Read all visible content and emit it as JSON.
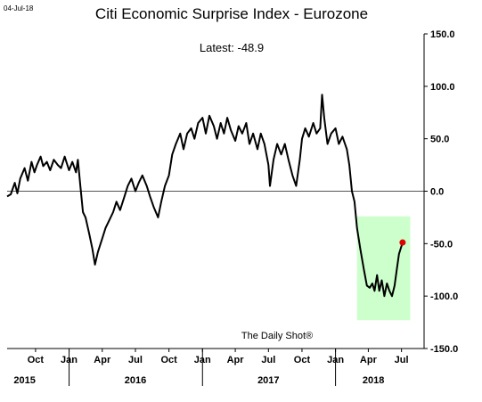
{
  "date_stamp": "04-Jul-18",
  "watermark": "The Daily Shot®",
  "chart_data": {
    "type": "line",
    "title": "Citi Economic Surprise Index - Eurozone",
    "subtitle": "Latest:  -48.9",
    "ylim": [
      -150,
      150
    ],
    "y_ticks": [
      "150.0",
      "100.0",
      "50.0",
      "0.0",
      "-50.0",
      "-100.0",
      "-150.0"
    ],
    "y_tick_values": [
      150,
      100,
      50,
      0,
      -50,
      -100,
      -150
    ],
    "x_month_ticks": [
      {
        "label": "Oct",
        "x": "2015-10-01"
      },
      {
        "label": "Jan",
        "x": "2016-01-01"
      },
      {
        "label": "Apr",
        "x": "2016-04-01"
      },
      {
        "label": "Jul",
        "x": "2016-07-01"
      },
      {
        "label": "Oct",
        "x": "2016-10-01"
      },
      {
        "label": "Jan",
        "x": "2017-01-01"
      },
      {
        "label": "Apr",
        "x": "2017-04-01"
      },
      {
        "label": "Jul",
        "x": "2017-07-01"
      },
      {
        "label": "Oct",
        "x": "2017-10-01"
      },
      {
        "label": "Jan",
        "x": "2018-01-01"
      },
      {
        "label": "Apr",
        "x": "2018-04-01"
      },
      {
        "label": "Jul",
        "x": "2018-07-01"
      }
    ],
    "x_year_labels": [
      {
        "label": "2015",
        "x": "2015-09-01"
      },
      {
        "label": "2016",
        "x": "2016-07-01"
      },
      {
        "label": "2017",
        "x": "2017-07-01"
      },
      {
        "label": "2018",
        "x": "2018-04-15"
      }
    ],
    "x_range": [
      "2015-07-15",
      "2018-09-01"
    ],
    "reference_line": 0,
    "highlight_region": {
      "x_start": "2018-03-01",
      "x_end": "2018-07-25",
      "y_start": -123,
      "y_end": -24,
      "color": "#ccffcc"
    },
    "line_color": "#000000",
    "latest_marker": {
      "x": "2018-07-04",
      "y": -48.9,
      "color": "#e00000"
    },
    "series": [
      {
        "values": [
          [
            "2015-07-15",
            -5
          ],
          [
            "2015-07-25",
            -3
          ],
          [
            "2015-08-05",
            8
          ],
          [
            "2015-08-12",
            -2
          ],
          [
            "2015-08-20",
            12
          ],
          [
            "2015-09-01",
            22
          ],
          [
            "2015-09-10",
            10
          ],
          [
            "2015-09-20",
            28
          ],
          [
            "2015-09-28",
            18
          ],
          [
            "2015-10-05",
            25
          ],
          [
            "2015-10-15",
            33
          ],
          [
            "2015-10-22",
            24
          ],
          [
            "2015-11-01",
            28
          ],
          [
            "2015-11-10",
            20
          ],
          [
            "2015-11-20",
            30
          ],
          [
            "2015-12-01",
            25
          ],
          [
            "2015-12-10",
            22
          ],
          [
            "2015-12-20",
            33
          ],
          [
            "2016-01-01",
            20
          ],
          [
            "2016-01-10",
            28
          ],
          [
            "2016-01-20",
            18
          ],
          [
            "2016-01-25",
            30
          ],
          [
            "2016-02-01",
            5
          ],
          [
            "2016-02-08",
            -20
          ],
          [
            "2016-02-15",
            -25
          ],
          [
            "2016-02-25",
            -40
          ],
          [
            "2016-03-05",
            -55
          ],
          [
            "2016-03-12",
            -70
          ],
          [
            "2016-03-20",
            -58
          ],
          [
            "2016-04-01",
            -45
          ],
          [
            "2016-04-10",
            -35
          ],
          [
            "2016-04-20",
            -28
          ],
          [
            "2016-05-01",
            -20
          ],
          [
            "2016-05-10",
            -10
          ],
          [
            "2016-05-20",
            -18
          ],
          [
            "2016-06-01",
            -5
          ],
          [
            "2016-06-10",
            5
          ],
          [
            "2016-06-20",
            12
          ],
          [
            "2016-07-01",
            0
          ],
          [
            "2016-07-10",
            8
          ],
          [
            "2016-07-20",
            15
          ],
          [
            "2016-08-01",
            5
          ],
          [
            "2016-08-10",
            -5
          ],
          [
            "2016-08-20",
            -15
          ],
          [
            "2016-09-01",
            -25
          ],
          [
            "2016-09-10",
            -10
          ],
          [
            "2016-09-20",
            5
          ],
          [
            "2016-10-01",
            15
          ],
          [
            "2016-10-10",
            35
          ],
          [
            "2016-10-20",
            45
          ],
          [
            "2016-11-01",
            55
          ],
          [
            "2016-11-10",
            40
          ],
          [
            "2016-11-20",
            55
          ],
          [
            "2016-12-01",
            60
          ],
          [
            "2016-12-10",
            50
          ],
          [
            "2016-12-20",
            65
          ],
          [
            "2017-01-01",
            70
          ],
          [
            "2017-01-10",
            55
          ],
          [
            "2017-01-20",
            72
          ],
          [
            "2017-02-01",
            62
          ],
          [
            "2017-02-10",
            50
          ],
          [
            "2017-02-20",
            65
          ],
          [
            "2017-03-01",
            55
          ],
          [
            "2017-03-10",
            70
          ],
          [
            "2017-03-20",
            58
          ],
          [
            "2017-04-01",
            48
          ],
          [
            "2017-04-10",
            62
          ],
          [
            "2017-04-20",
            55
          ],
          [
            "2017-05-01",
            65
          ],
          [
            "2017-05-10",
            45
          ],
          [
            "2017-05-20",
            55
          ],
          [
            "2017-06-01",
            40
          ],
          [
            "2017-06-10",
            55
          ],
          [
            "2017-06-20",
            45
          ],
          [
            "2017-07-01",
            25
          ],
          [
            "2017-07-05",
            5
          ],
          [
            "2017-07-15",
            30
          ],
          [
            "2017-07-25",
            45
          ],
          [
            "2017-08-05",
            35
          ],
          [
            "2017-08-15",
            45
          ],
          [
            "2017-08-25",
            30
          ],
          [
            "2017-09-05",
            15
          ],
          [
            "2017-09-15",
            5
          ],
          [
            "2017-09-25",
            30
          ],
          [
            "2017-10-01",
            50
          ],
          [
            "2017-10-10",
            60
          ],
          [
            "2017-10-20",
            52
          ],
          [
            "2017-11-01",
            65
          ],
          [
            "2017-11-10",
            55
          ],
          [
            "2017-11-20",
            60
          ],
          [
            "2017-11-25",
            92
          ],
          [
            "2017-12-01",
            70
          ],
          [
            "2017-12-10",
            45
          ],
          [
            "2017-12-20",
            55
          ],
          [
            "2018-01-01",
            60
          ],
          [
            "2018-01-10",
            45
          ],
          [
            "2018-01-20",
            52
          ],
          [
            "2018-02-01",
            40
          ],
          [
            "2018-02-08",
            25
          ],
          [
            "2018-02-15",
            0
          ],
          [
            "2018-02-22",
            -10
          ],
          [
            "2018-03-01",
            -35
          ],
          [
            "2018-03-10",
            -55
          ],
          [
            "2018-03-20",
            -75
          ],
          [
            "2018-03-28",
            -90
          ],
          [
            "2018-04-05",
            -92
          ],
          [
            "2018-04-12",
            -88
          ],
          [
            "2018-04-18",
            -95
          ],
          [
            "2018-04-25",
            -80
          ],
          [
            "2018-05-01",
            -95
          ],
          [
            "2018-05-08",
            -85
          ],
          [
            "2018-05-15",
            -100
          ],
          [
            "2018-05-22",
            -88
          ],
          [
            "2018-05-29",
            -95
          ],
          [
            "2018-06-05",
            -100
          ],
          [
            "2018-06-12",
            -90
          ],
          [
            "2018-06-18",
            -75
          ],
          [
            "2018-06-24",
            -60
          ],
          [
            "2018-07-04",
            -48.9
          ]
        ]
      }
    ]
  }
}
